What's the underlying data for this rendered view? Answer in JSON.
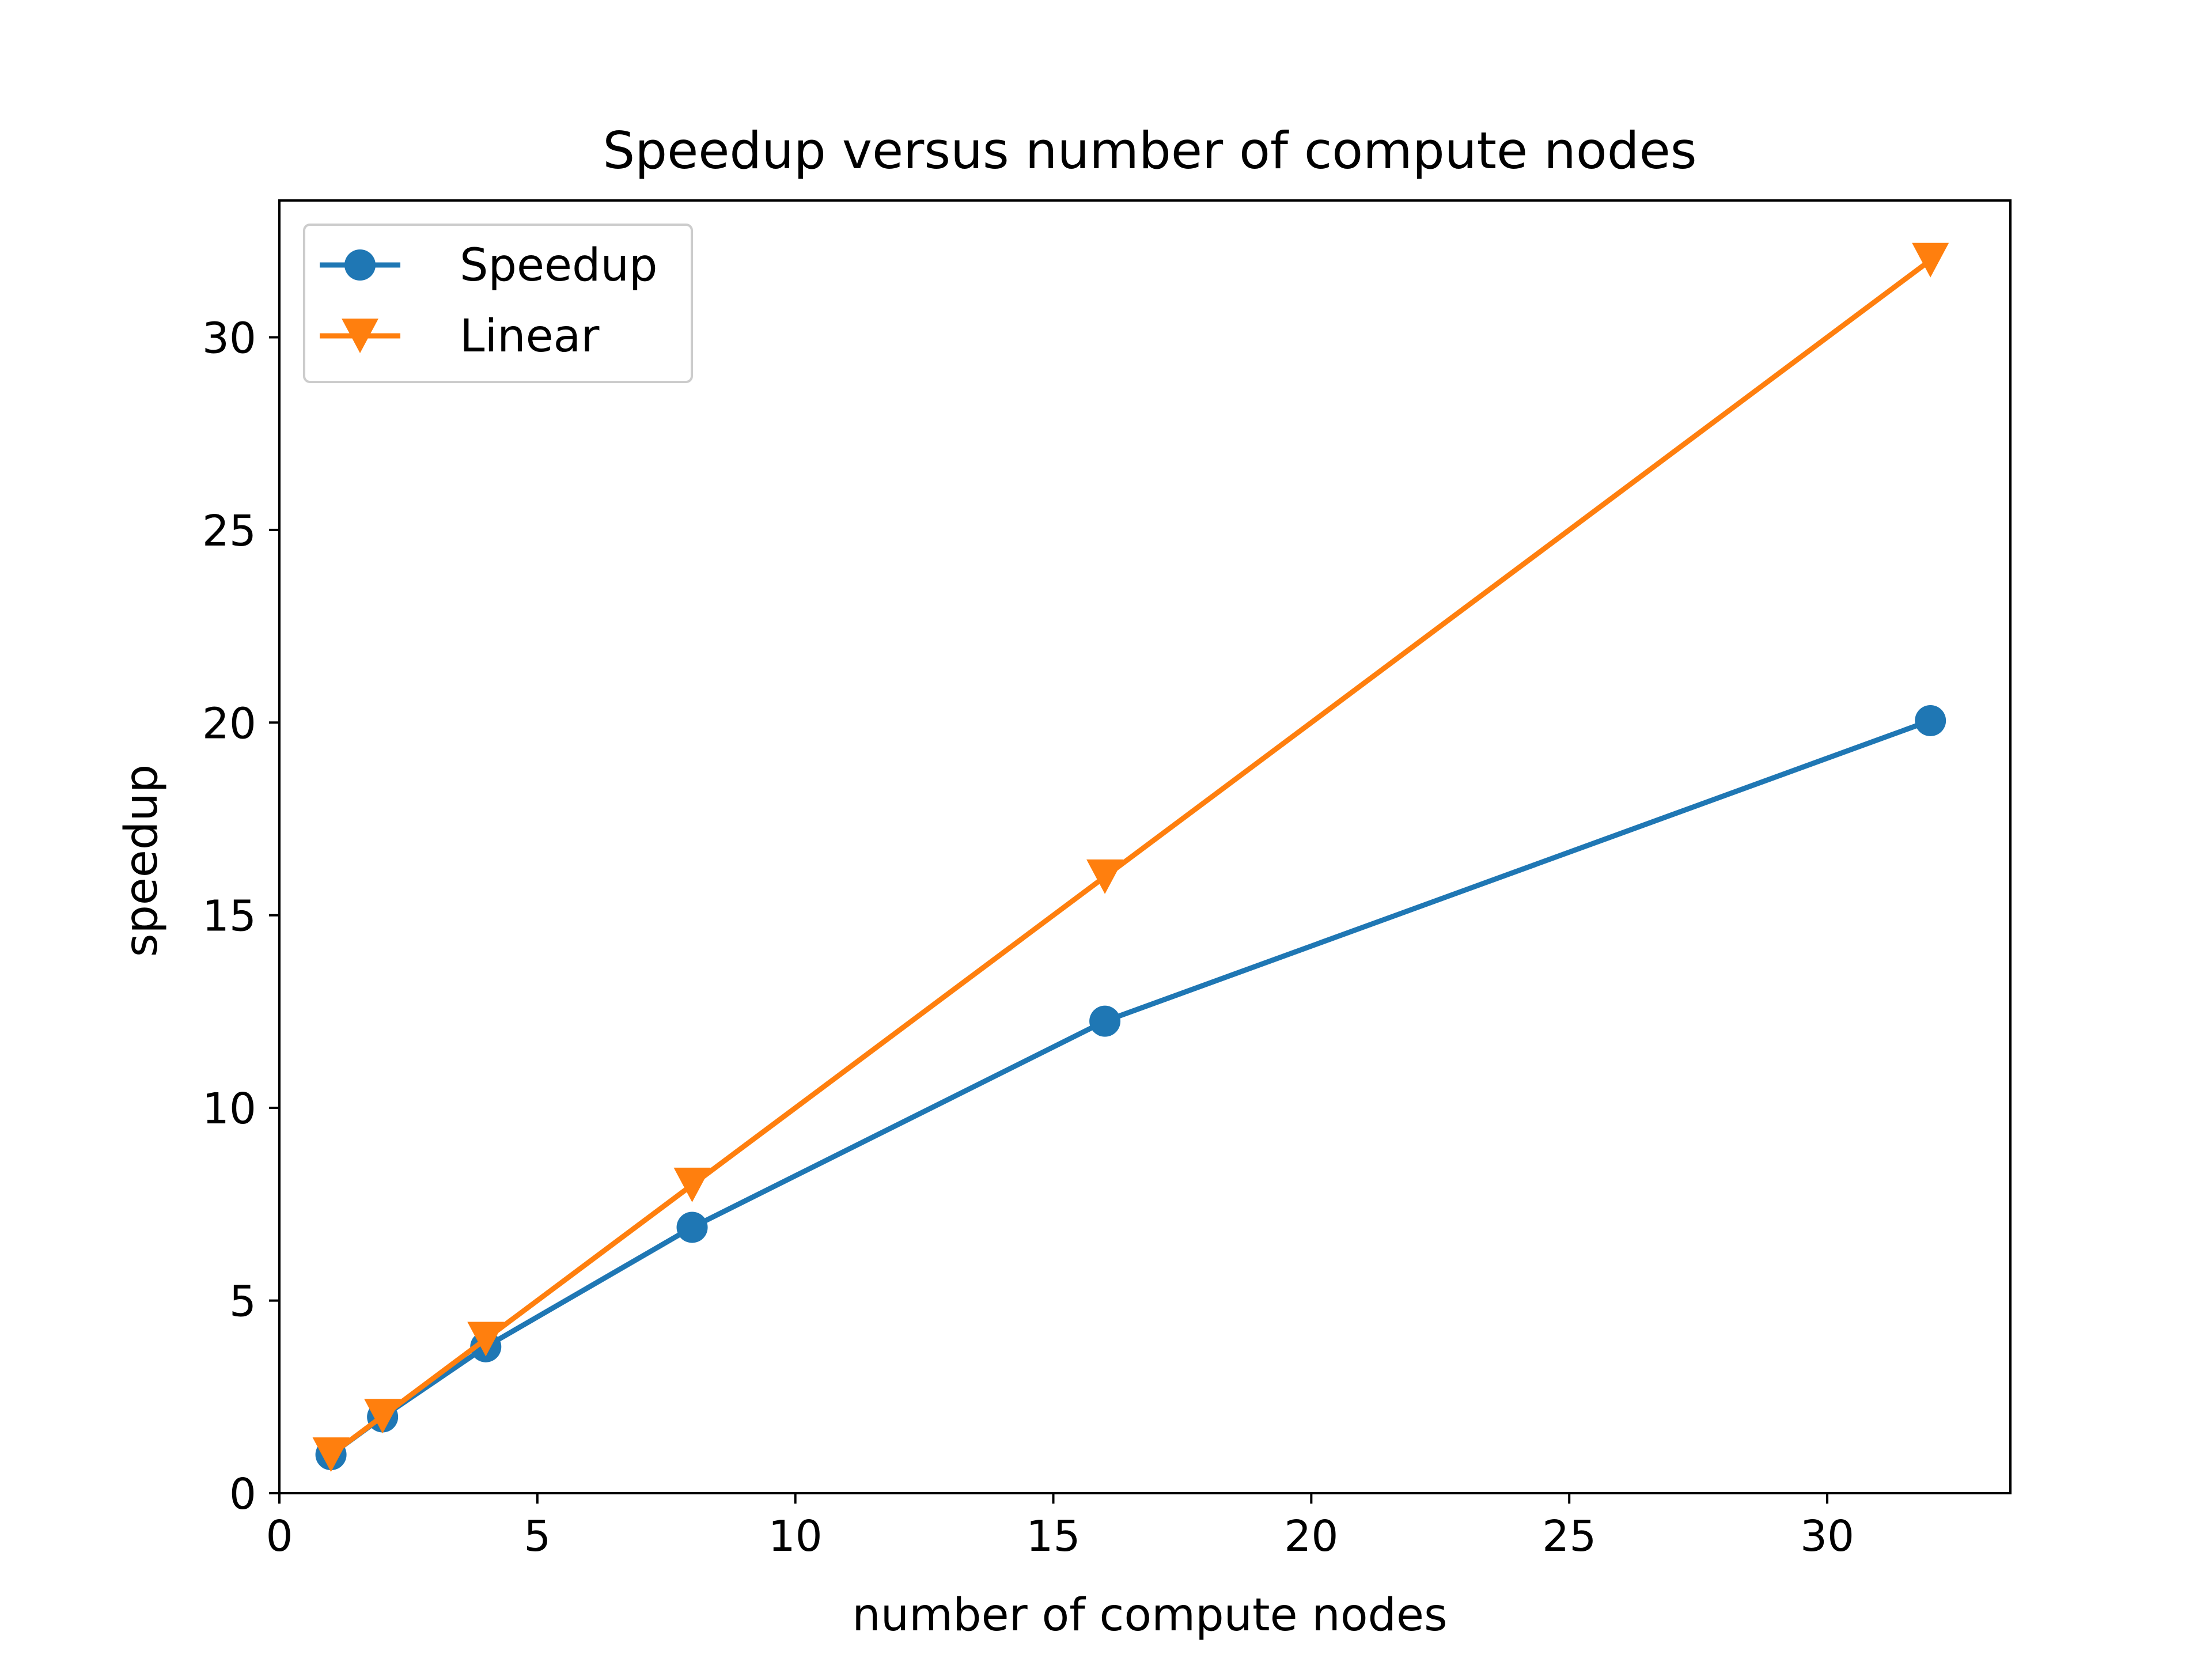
{
  "chart_data": {
    "type": "line",
    "title": "Speedup versus number of compute nodes",
    "xlabel": "number of compute nodes",
    "ylabel": "speedup",
    "xlim": [
      0,
      33.55
    ],
    "ylim": [
      0,
      33.55
    ],
    "xticks": [
      0,
      5,
      10,
      15,
      20,
      25,
      30
    ],
    "yticks": [
      0,
      5,
      10,
      15,
      20,
      25,
      30
    ],
    "grid": false,
    "legend_position": "upper left",
    "series": [
      {
        "name": "Speedup",
        "marker": "circle",
        "color": "#1f77b4",
        "x": [
          1,
          2,
          4,
          8,
          16,
          32
        ],
        "y": [
          1.0,
          1.98,
          3.8,
          6.9,
          12.25,
          20.05
        ]
      },
      {
        "name": "Linear",
        "marker": "triangle-down",
        "color": "#ff7f0e",
        "x": [
          1,
          2,
          4,
          8,
          16,
          32
        ],
        "y": [
          1,
          2,
          4,
          8,
          16,
          32
        ]
      }
    ]
  }
}
